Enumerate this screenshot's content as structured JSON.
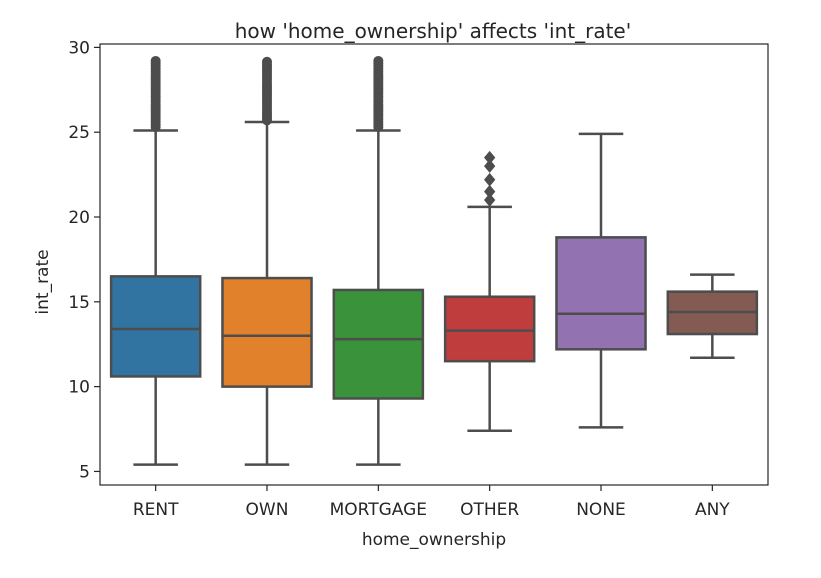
{
  "chart_data": {
    "type": "box",
    "title": "how 'home_ownership' affects 'int_rate'",
    "xlabel": "home_ownership",
    "ylabel": "int_rate",
    "ylim": [
      4.2,
      30.2
    ],
    "yticks": [
      5,
      10,
      15,
      20,
      25,
      30
    ],
    "grid": false,
    "legend": "none",
    "categories": [
      "RENT",
      "OWN",
      "MORTGAGE",
      "OTHER",
      "NONE",
      "ANY"
    ],
    "boxes": [
      {
        "category": "RENT",
        "color": "#3274a1",
        "whisker_low": 5.4,
        "q1": 10.6,
        "median": 13.4,
        "q3": 16.5,
        "whisker_high": 25.1,
        "outliers_range": [
          25.3,
          29.2
        ],
        "outliers": []
      },
      {
        "category": "OWN",
        "color": "#e1812c",
        "whisker_low": 5.4,
        "q1": 10.0,
        "median": 13.0,
        "q3": 16.4,
        "whisker_high": 25.6,
        "outliers_range": [
          25.7,
          29.2
        ],
        "outliers": []
      },
      {
        "category": "MORTGAGE",
        "color": "#3a923a",
        "whisker_low": 5.4,
        "q1": 9.3,
        "median": 12.8,
        "q3": 15.7,
        "whisker_high": 25.1,
        "outliers_range": [
          25.3,
          29.2
        ],
        "outliers": []
      },
      {
        "category": "OTHER",
        "color": "#c03d3e",
        "whisker_low": 7.4,
        "q1": 11.5,
        "median": 13.3,
        "q3": 15.3,
        "whisker_high": 20.6,
        "outliers_range": null,
        "outliers": [
          21.0,
          21.5,
          22.2,
          23.0,
          23.5
        ]
      },
      {
        "category": "NONE",
        "color": "#9372b2",
        "whisker_low": 7.6,
        "q1": 12.2,
        "median": 14.3,
        "q3": 18.8,
        "whisker_high": 24.9,
        "outliers_range": null,
        "outliers": []
      },
      {
        "category": "ANY",
        "color": "#845b53",
        "whisker_low": 11.7,
        "q1": 13.1,
        "median": 14.4,
        "q3": 15.6,
        "whisker_high": 16.6,
        "outliers_range": null,
        "outliers": []
      }
    ],
    "line_color": "#4d4d4d"
  }
}
